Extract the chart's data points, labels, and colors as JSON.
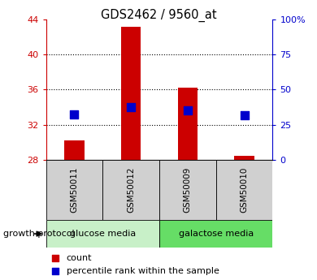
{
  "title": "GDS2462 / 9560_at",
  "samples": [
    "GSM50011",
    "GSM50012",
    "GSM50009",
    "GSM50010"
  ],
  "counts": [
    30.2,
    43.2,
    36.2,
    28.4
  ],
  "percentiles": [
    33.2,
    34.0,
    33.6,
    33.1
  ],
  "base_value": 28.0,
  "left_ylim": [
    28,
    44
  ],
  "left_yticks": [
    28,
    32,
    36,
    40,
    44
  ],
  "right_ylim": [
    0,
    100
  ],
  "right_yticks": [
    0,
    25,
    50,
    75,
    100
  ],
  "right_yticklabels": [
    "0",
    "25",
    "50",
    "75",
    "100%"
  ],
  "bar_color": "#cc0000",
  "point_color": "#0000cc",
  "groups": [
    {
      "label": "glucose media",
      "indices": [
        0,
        1
      ],
      "color": "#c8f0c8"
    },
    {
      "label": "galactose media",
      "indices": [
        2,
        3
      ],
      "color": "#66dd66"
    }
  ],
  "sample_row_color": "#d0d0d0",
  "growth_protocol_label": "growth protocol",
  "legend_count_label": "count",
  "legend_percentile_label": "percentile rank within the sample",
  "left_axis_color": "#cc0000",
  "right_axis_color": "#0000cc",
  "grid_yticks": [
    32,
    36,
    40
  ],
  "bar_width": 0.35,
  "point_size": 55,
  "figsize": [
    3.9,
    3.45
  ],
  "dpi": 100
}
